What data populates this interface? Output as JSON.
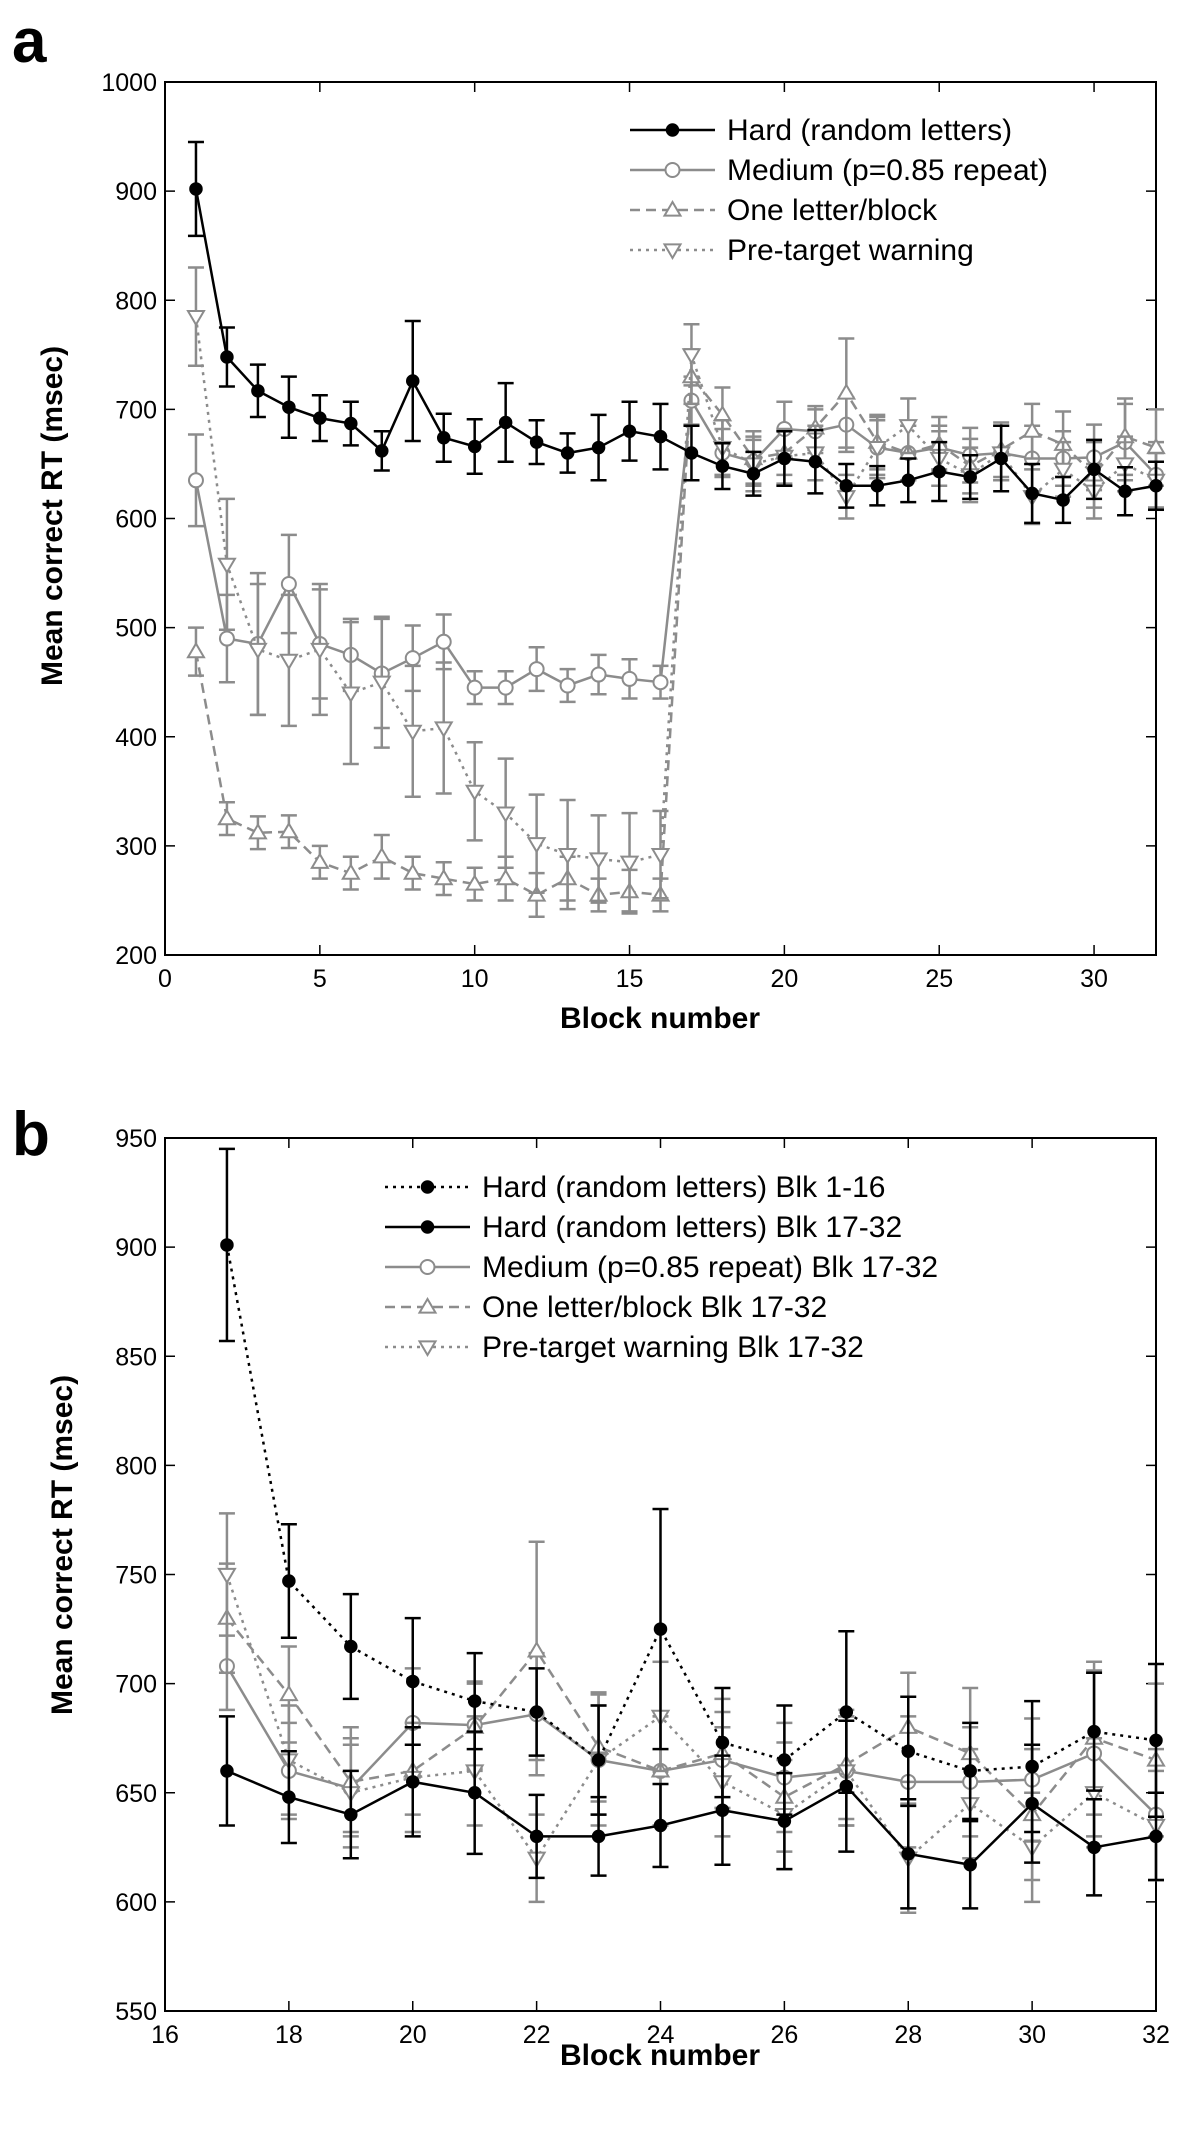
{
  "panels": [
    {
      "letter": "a",
      "xlabel": "Block number",
      "ylabel": "Mean correct RT (msec)"
    },
    {
      "letter": "b",
      "xlabel": "Block number",
      "ylabel": "Mean correct RT (msec)"
    }
  ],
  "chart_data": [
    {
      "type": "line",
      "xlabel": "Block number",
      "ylabel": "Mean correct RT (msec)",
      "xlim": [
        0,
        32
      ],
      "ylim": [
        200,
        1000
      ],
      "xticks": [
        0,
        5,
        10,
        15,
        20,
        25,
        30
      ],
      "yticks": [
        200,
        300,
        400,
        500,
        600,
        700,
        800,
        900,
        1000
      ],
      "grid": false,
      "legend_position": "top-right",
      "series": [
        {
          "name": "Hard (random letters)",
          "color": "#000000",
          "dash": "solid",
          "marker": "dot",
          "x": [
            1,
            2,
            3,
            4,
            5,
            6,
            7,
            8,
            9,
            10,
            11,
            12,
            13,
            14,
            15,
            16,
            17,
            18,
            19,
            20,
            21,
            22,
            23,
            24,
            25,
            26,
            27,
            28,
            29,
            30,
            31,
            32
          ],
          "y": [
            902,
            748,
            717,
            702,
            692,
            687,
            662,
            726,
            674,
            666,
            688,
            670,
            660,
            665,
            680,
            675,
            660,
            648,
            641,
            655,
            652,
            630,
            630,
            635,
            643,
            638,
            655,
            623,
            617,
            645,
            625,
            630
          ],
          "err": [
            43,
            27,
            24,
            28,
            21,
            20,
            18,
            55,
            22,
            25,
            36,
            20,
            18,
            30,
            27,
            30,
            25,
            21,
            20,
            25,
            29,
            20,
            18,
            20,
            27,
            20,
            30,
            27,
            21,
            27,
            22,
            22
          ]
        },
        {
          "name": "Medium (p=0.85 repeat)",
          "color": "#8c8c8c",
          "dash": "solid",
          "marker": "circle",
          "x": [
            1,
            2,
            3,
            4,
            5,
            6,
            7,
            8,
            9,
            10,
            11,
            12,
            13,
            14,
            15,
            16,
            17,
            18,
            19,
            20,
            21,
            22,
            23,
            24,
            25,
            26,
            27,
            28,
            29,
            30,
            31,
            32
          ],
          "y": [
            635,
            490,
            485,
            540,
            485,
            475,
            458,
            472,
            487,
            445,
            445,
            462,
            447,
            457,
            453,
            450,
            708,
            660,
            652,
            682,
            680,
            686,
            665,
            660,
            665,
            658,
            660,
            655,
            655,
            656,
            670,
            640
          ],
          "err": [
            42,
            40,
            65,
            45,
            50,
            33,
            50,
            30,
            25,
            15,
            15,
            20,
            15,
            18,
            18,
            15,
            22,
            22,
            20,
            25,
            20,
            25,
            28,
            25,
            20,
            25,
            25,
            30,
            25,
            30,
            35,
            30
          ]
        },
        {
          "name": "One letter/block",
          "color": "#8c8c8c",
          "dash": "dashed",
          "marker": "triangle-up",
          "x": [
            1,
            2,
            3,
            4,
            5,
            6,
            7,
            8,
            9,
            10,
            11,
            12,
            13,
            14,
            15,
            16,
            17,
            18,
            19,
            20,
            21,
            22,
            23,
            24,
            25,
            26,
            27,
            28,
            29,
            30,
            31,
            32
          ],
          "y": [
            478,
            325,
            312,
            313,
            285,
            275,
            290,
            275,
            270,
            265,
            270,
            255,
            270,
            255,
            258,
            255,
            730,
            695,
            655,
            660,
            683,
            715,
            670,
            660,
            668,
            648,
            663,
            680,
            668,
            640,
            675,
            665
          ],
          "err": [
            22,
            15,
            15,
            15,
            15,
            15,
            20,
            15,
            15,
            15,
            20,
            20,
            20,
            15,
            20,
            15,
            25,
            25,
            25,
            20,
            20,
            50,
            25,
            25,
            25,
            25,
            25,
            25,
            30,
            30,
            35,
            35
          ]
        },
        {
          "name": "Pre-target warning",
          "color": "#8c8c8c",
          "dash": "dotted",
          "marker": "triangle-down",
          "x": [
            1,
            2,
            3,
            4,
            5,
            6,
            7,
            8,
            9,
            10,
            11,
            12,
            13,
            14,
            15,
            16,
            17,
            18,
            19,
            20,
            21,
            22,
            23,
            24,
            25,
            26,
            27,
            28,
            29,
            30,
            31,
            32
          ],
          "y": [
            785,
            558,
            480,
            470,
            480,
            440,
            450,
            405,
            408,
            350,
            330,
            302,
            292,
            288,
            285,
            292,
            750,
            665,
            650,
            657,
            660,
            620,
            665,
            685,
            655,
            640,
            660,
            620,
            645,
            625,
            650,
            635
          ],
          "err": [
            45,
            60,
            60,
            60,
            60,
            65,
            60,
            60,
            60,
            45,
            50,
            45,
            50,
            40,
            45,
            40,
            28,
            25,
            25,
            25,
            25,
            20,
            25,
            25,
            25,
            25,
            25,
            25,
            25,
            25,
            25,
            25
          ]
        }
      ]
    },
    {
      "type": "line",
      "xlabel": "Block number",
      "ylabel": "Mean correct RT (msec)",
      "xlim": [
        16,
        32
      ],
      "ylim": [
        550,
        950
      ],
      "xticks": [
        16,
        18,
        20,
        22,
        24,
        26,
        28,
        30,
        32
      ],
      "yticks": [
        550,
        600,
        650,
        700,
        750,
        800,
        850,
        900,
        950
      ],
      "grid": false,
      "legend_position": "top-right",
      "series": [
        {
          "name": "Hard (random letters) Blk 1-16",
          "color": "#000000",
          "dash": "dotted",
          "marker": "dot",
          "x": [
            17,
            18,
            19,
            20,
            21,
            22,
            23,
            24,
            25,
            26,
            27,
            28,
            29,
            30,
            31,
            32
          ],
          "y": [
            901,
            747,
            717,
            701,
            692,
            687,
            665,
            725,
            673,
            665,
            687,
            669,
            660,
            662,
            678,
            674
          ],
          "err": [
            44,
            26,
            24,
            29,
            22,
            20,
            25,
            55,
            25,
            25,
            37,
            25,
            22,
            30,
            27,
            35
          ]
        },
        {
          "name": "Hard (random letters) Blk 17-32",
          "color": "#000000",
          "dash": "solid",
          "marker": "dot",
          "x": [
            17,
            18,
            19,
            20,
            21,
            22,
            23,
            24,
            25,
            26,
            27,
            28,
            29,
            30,
            31,
            32
          ],
          "y": [
            660,
            648,
            640,
            655,
            650,
            630,
            630,
            635,
            642,
            637,
            653,
            622,
            617,
            645,
            625,
            630
          ],
          "err": [
            25,
            21,
            20,
            25,
            28,
            19,
            18,
            19,
            25,
            22,
            30,
            25,
            20,
            27,
            22,
            20
          ]
        },
        {
          "name": "Medium (p=0.85 repeat) Blk 17-32",
          "color": "#8c8c8c",
          "dash": "solid",
          "marker": "circle",
          "x": [
            17,
            18,
            19,
            20,
            21,
            22,
            23,
            24,
            25,
            26,
            27,
            28,
            29,
            30,
            31,
            32
          ],
          "y": [
            708,
            660,
            652,
            682,
            681,
            686,
            665,
            660,
            665,
            657,
            660,
            655,
            655,
            656,
            668,
            640
          ],
          "err": [
            20,
            22,
            20,
            25,
            20,
            28,
            30,
            25,
            22,
            25,
            25,
            30,
            25,
            28,
            38,
            30
          ]
        },
        {
          "name": "One letter/block Blk 17-32",
          "color": "#8c8c8c",
          "dash": "dashed",
          "marker": "triangle-up",
          "x": [
            17,
            18,
            19,
            20,
            21,
            22,
            23,
            24,
            25,
            26,
            27,
            28,
            29,
            30,
            31,
            32
          ],
          "y": [
            730,
            695,
            655,
            660,
            680,
            715,
            671,
            660,
            668,
            648,
            663,
            680,
            668,
            640,
            675,
            665
          ],
          "err": [
            25,
            22,
            25,
            20,
            20,
            50,
            25,
            25,
            25,
            25,
            25,
            25,
            30,
            30,
            35,
            35
          ]
        },
        {
          "name": "Pre-target warning Blk 17-32",
          "color": "#8c8c8c",
          "dash": "dotted",
          "marker": "triangle-down",
          "x": [
            17,
            18,
            19,
            20,
            21,
            22,
            23,
            24,
            25,
            26,
            27,
            28,
            29,
            30,
            31,
            32
          ],
          "y": [
            750,
            665,
            650,
            657,
            660,
            620,
            665,
            685,
            655,
            640,
            660,
            620,
            645,
            625,
            650,
            635
          ],
          "err": [
            28,
            25,
            25,
            25,
            25,
            20,
            25,
            25,
            25,
            25,
            25,
            25,
            25,
            25,
            25,
            25
          ]
        }
      ]
    }
  ]
}
